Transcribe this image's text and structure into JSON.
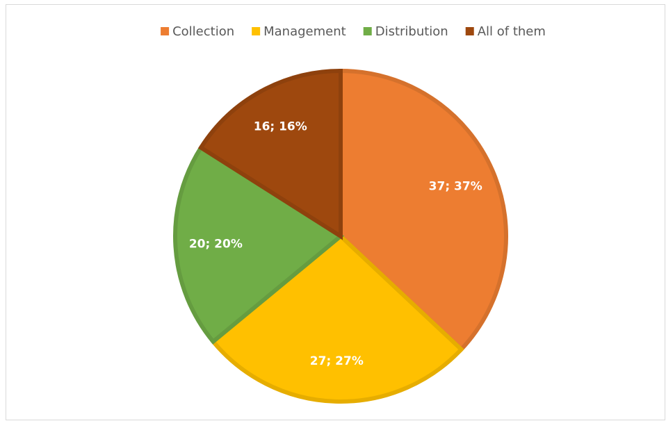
{
  "chart_data": {
    "type": "pie",
    "categories": [
      "Collection",
      "Management",
      "Distribution",
      "All of them"
    ],
    "values": [
      37,
      27,
      20,
      16
    ],
    "value_labels": [
      "37; 37%",
      "27; 27%",
      "20; 20%",
      "16; 16%"
    ],
    "colors": [
      "#ed7d31",
      "#ffc000",
      "#70ad47",
      "#9e480e"
    ],
    "legend": "top"
  }
}
